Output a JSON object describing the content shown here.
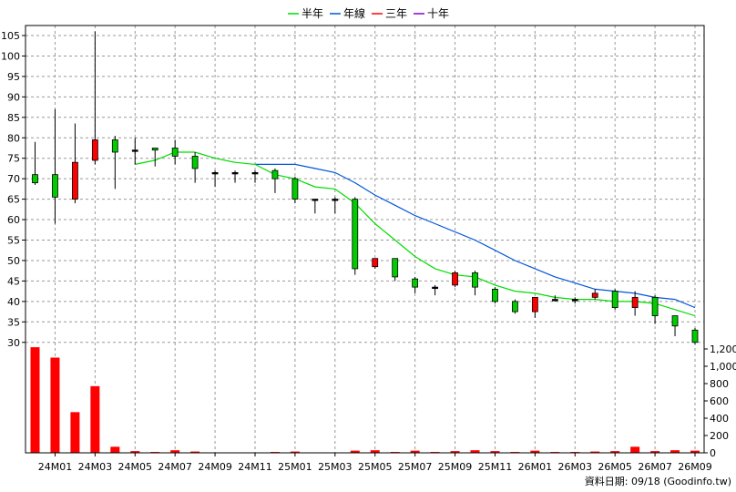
{
  "chart_data": {
    "type": "candlestick",
    "legend": {
      "placement": "top-center",
      "items": [
        {
          "label": "半年",
          "color": "#00dd00"
        },
        {
          "label": "年線",
          "color": "#0055dd"
        },
        {
          "label": "三年",
          "color": "#ff0000"
        },
        {
          "label": "十年",
          "color": "#8800cc"
        }
      ]
    },
    "price_axis": {
      "min": 28,
      "max": 107,
      "ticks": [
        30,
        35,
        40,
        45,
        50,
        55,
        60,
        65,
        70,
        75,
        80,
        85,
        90,
        95,
        100,
        105
      ]
    },
    "volume_axis": {
      "min": 0,
      "max": 1220,
      "ticks": [
        0,
        200,
        400,
        600,
        800,
        1000,
        1200
      ],
      "tick_labels": [
        "0",
        "200",
        "400",
        "600",
        "800",
        "1,000",
        "1,200"
      ]
    },
    "x_labels": [
      "24M01",
      "24M03",
      "24M05",
      "24M07",
      "24M09",
      "24M11",
      "25M01",
      "25M03",
      "25M05",
      "25M07",
      "25M09",
      "25M11",
      "26M01",
      "26M03",
      "26M05",
      "26M07",
      "26M09"
    ],
    "grid": true,
    "colors": {
      "up": "#ff0000",
      "down": "#00cc00",
      "volume": "#ff0000",
      "grid": "#999999"
    },
    "candles": [
      {
        "open": 71,
        "high": 79,
        "low": 68.5,
        "close": 69
      },
      {
        "open": 71,
        "high": 87,
        "low": 59,
        "close": 65.5
      },
      {
        "open": 65,
        "high": 83.5,
        "low": 64,
        "close": 74
      },
      {
        "open": 74.5,
        "high": 106,
        "low": 73.5,
        "close": 79.5
      },
      {
        "open": 79.5,
        "high": 80.5,
        "low": 67.5,
        "close": 76.5
      },
      {
        "open": 77,
        "high": 80,
        "low": 73.5,
        "close": 77
      },
      {
        "open": 77.5,
        "high": 77.5,
        "low": 73,
        "close": 77
      },
      {
        "open": 77.5,
        "high": 79.5,
        "low": 73.5,
        "close": 75.5
      },
      {
        "open": 75.5,
        "high": 76.5,
        "low": 69,
        "close": 72.5
      },
      {
        "open": 71.5,
        "high": 72,
        "low": 68,
        "close": 71.5
      },
      {
        "open": 71.5,
        "high": 72,
        "low": 69,
        "close": 71.5
      },
      {
        "open": 71.5,
        "high": 72,
        "low": 69,
        "close": 71.5
      },
      {
        "open": 72,
        "high": 72.5,
        "low": 66.5,
        "close": 70
      },
      {
        "open": 70,
        "high": 70.5,
        "low": 64,
        "close": 65
      },
      {
        "open": 65,
        "high": 65,
        "low": 61.5,
        "close": 65
      },
      {
        "open": 65,
        "high": 65.5,
        "low": 61.5,
        "close": 65
      },
      {
        "open": 65,
        "high": 65.5,
        "low": 46.5,
        "close": 48
      },
      {
        "open": 48.5,
        "high": 50.5,
        "low": 48,
        "close": 50.5
      },
      {
        "open": 50.5,
        "high": 50.5,
        "low": 45,
        "close": 46
      },
      {
        "open": 45.5,
        "high": 46,
        "low": 42,
        "close": 43.5
      },
      {
        "open": 43.5,
        "high": 44,
        "low": 41.5,
        "close": 43.5
      },
      {
        "open": 44,
        "high": 47.5,
        "low": 43.5,
        "close": 47
      },
      {
        "open": 47,
        "high": 47.5,
        "low": 41.5,
        "close": 43.5
      },
      {
        "open": 43,
        "high": 43.5,
        "low": 39.5,
        "close": 40
      },
      {
        "open": 40,
        "high": 40.5,
        "low": 37,
        "close": 37.5
      },
      {
        "open": 37.5,
        "high": 41,
        "low": 36,
        "close": 41
      },
      {
        "open": 40.5,
        "high": 41.5,
        "low": 40,
        "close": 40.5
      },
      {
        "open": 40.5,
        "high": 41,
        "low": 39.5,
        "close": 40.5
      },
      {
        "open": 41,
        "high": 43,
        "low": 40.5,
        "close": 42
      },
      {
        "open": 42.5,
        "high": 43,
        "low": 38,
        "close": 38.5
      },
      {
        "open": 38.5,
        "high": 42.5,
        "low": 36.5,
        "close": 41
      },
      {
        "open": 41,
        "high": 41.5,
        "low": 34.5,
        "close": 36.5
      },
      {
        "open": 36.5,
        "high": 36.5,
        "low": 31.5,
        "close": 34
      },
      {
        "open": 33,
        "high": 33.5,
        "low": 29.5,
        "close": 30
      }
    ],
    "volume": [
      1220,
      1100,
      470,
      770,
      70,
      20,
      10,
      30,
      15,
      5,
      5,
      5,
      10,
      15,
      5,
      5,
      25,
      30,
      10,
      25,
      10,
      20,
      30,
      20,
      10,
      25,
      10,
      10,
      15,
      20,
      70,
      20,
      30,
      25
    ],
    "half_year_line": [
      [
        5,
        73.5
      ],
      [
        6,
        74.5
      ],
      [
        7,
        76.5
      ],
      [
        8,
        76.5
      ],
      [
        9,
        75
      ],
      [
        10,
        74
      ],
      [
        11,
        73.5
      ],
      [
        12,
        71
      ],
      [
        13,
        70
      ],
      [
        14,
        68
      ],
      [
        15,
        67.5
      ],
      [
        16,
        64
      ],
      [
        17,
        59
      ],
      [
        18,
        55
      ],
      [
        19,
        51
      ],
      [
        20,
        48
      ],
      [
        21,
        46.5
      ],
      [
        22,
        46
      ],
      [
        23,
        44
      ],
      [
        24,
        42.5
      ],
      [
        25,
        42
      ],
      [
        26,
        41
      ],
      [
        27,
        40.5
      ],
      [
        28,
        40.5
      ],
      [
        29,
        40
      ],
      [
        30,
        40
      ],
      [
        31,
        39.5
      ],
      [
        32,
        38
      ],
      [
        33,
        36.5
      ]
    ],
    "year_line": [
      [
        11,
        73.5
      ],
      [
        12,
        73.5
      ],
      [
        13,
        73.5
      ],
      [
        14,
        72.5
      ],
      [
        15,
        71.5
      ],
      [
        16,
        69
      ],
      [
        17,
        66
      ],
      [
        18,
        63.5
      ],
      [
        19,
        61
      ],
      [
        20,
        59
      ],
      [
        21,
        57
      ],
      [
        22,
        55
      ],
      [
        23,
        52.5
      ],
      [
        24,
        50
      ],
      [
        25,
        48
      ],
      [
        26,
        46
      ],
      [
        27,
        44.5
      ],
      [
        28,
        43
      ],
      [
        29,
        42.5
      ],
      [
        30,
        42
      ],
      [
        31,
        41
      ],
      [
        32,
        40.5
      ],
      [
        33,
        38.5
      ]
    ]
  },
  "footer": {
    "source_label": "資料日期: 09/18  (Goodinfo.tw)"
  }
}
